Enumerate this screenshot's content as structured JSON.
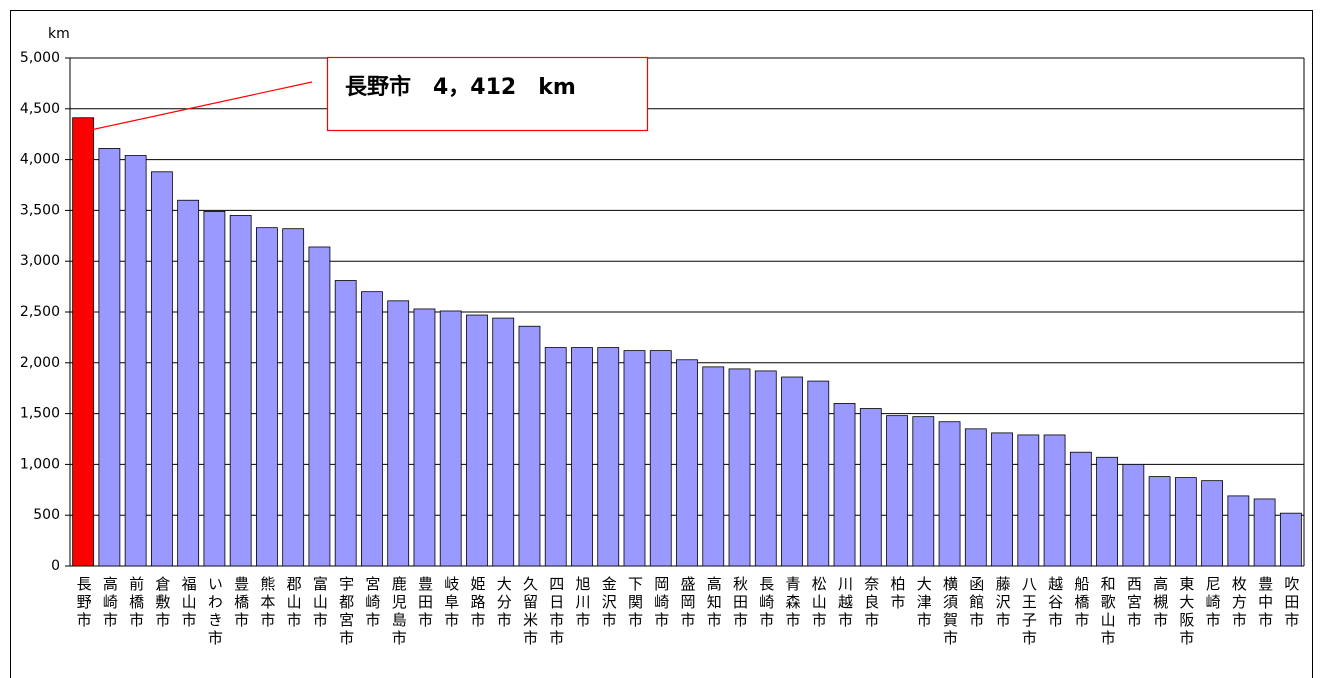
{
  "chart_data": {
    "type": "bar",
    "y_unit": "km",
    "categories": [
      "長野市",
      "高崎市",
      "前橋市",
      "倉敷市",
      "福山市",
      "いわき市",
      "豊橋市",
      "熊本市",
      "郡山市",
      "富山市",
      "宇都宮市",
      "宮崎市",
      "鹿児島市",
      "豊田市",
      "岐阜市",
      "姫路市",
      "大分市",
      "久留米市",
      "四日市市",
      "旭川市",
      "金沢市",
      "下関市",
      "岡崎市",
      "盛岡市",
      "高知市",
      "秋田市",
      "長崎市",
      "青森市",
      "松山市",
      "川越市",
      "奈良市",
      "柏市",
      "大津市",
      "横須賀市",
      "函館市",
      "藤沢市",
      "八王子市",
      "越谷市",
      "船橋市",
      "和歌山市",
      "西宮市",
      "高槻市",
      "東大阪市",
      "尼崎市",
      "枚方市",
      "豊中市",
      "吹田市"
    ],
    "values": [
      4412,
      4110,
      4040,
      3880,
      3600,
      3490,
      3450,
      3330,
      3320,
      3140,
      2810,
      2700,
      2610,
      2530,
      2510,
      2470,
      2440,
      2360,
      2150,
      2150,
      2150,
      2120,
      2120,
      2030,
      1960,
      1940,
      1920,
      1860,
      1820,
      1600,
      1550,
      1480,
      1470,
      1420,
      1350,
      1310,
      1290,
      1290,
      1120,
      1070,
      1000,
      880,
      870,
      840,
      690,
      660,
      520
    ],
    "bar_colors": [
      "#ff0000",
      "#9999ff",
      "#9999ff",
      "#9999ff",
      "#9999ff",
      "#9999ff",
      "#9999ff",
      "#9999ff",
      "#9999ff",
      "#9999ff",
      "#9999ff",
      "#9999ff",
      "#9999ff",
      "#9999ff",
      "#9999ff",
      "#9999ff",
      "#9999ff",
      "#9999ff",
      "#9999ff",
      "#9999ff",
      "#9999ff",
      "#9999ff",
      "#9999ff",
      "#9999ff",
      "#9999ff",
      "#9999ff",
      "#9999ff",
      "#9999ff",
      "#9999ff",
      "#9999ff",
      "#9999ff",
      "#9999ff",
      "#9999ff",
      "#9999ff",
      "#9999ff",
      "#9999ff",
      "#9999ff",
      "#9999ff",
      "#9999ff",
      "#9999ff",
      "#9999ff",
      "#9999ff",
      "#9999ff",
      "#9999ff",
      "#9999ff",
      "#9999ff",
      "#9999ff"
    ],
    "annotation": "長野市　4，412　km",
    "ylim": [
      0,
      5000
    ],
    "yticks": [
      0,
      500,
      {
        "value": 1000,
        "label": "1,000"
      },
      {
        "value": 1500,
        "label": "1,500"
      },
      {
        "value": 2000,
        "label": "2,000"
      },
      {
        "value": 2500,
        "label": "2,500"
      },
      {
        "value": 3000,
        "label": "3,000"
      },
      {
        "value": 3500,
        "label": "3,500"
      },
      {
        "value": 4000,
        "label": "4,000"
      },
      {
        "value": 4500,
        "label": "4,500"
      },
      {
        "value": 5000,
        "label": "5,000"
      }
    ],
    "grid": true
  }
}
